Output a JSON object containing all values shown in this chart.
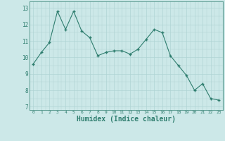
{
  "x": [
    0,
    1,
    2,
    3,
    4,
    5,
    6,
    7,
    8,
    9,
    10,
    11,
    12,
    13,
    14,
    15,
    16,
    17,
    18,
    19,
    20,
    21,
    22,
    23
  ],
  "y": [
    9.6,
    10.3,
    10.9,
    12.8,
    11.7,
    12.8,
    11.6,
    11.2,
    10.1,
    10.3,
    10.4,
    10.4,
    10.2,
    10.5,
    11.1,
    11.7,
    11.5,
    10.1,
    9.5,
    8.9,
    8.0,
    8.4,
    7.5,
    7.4
  ],
  "line_color": "#2e7d6e",
  "marker": "+",
  "marker_size": 3,
  "marker_linewidth": 1.0,
  "bg_color": "#cce8e8",
  "grid_color": "#b0d4d4",
  "xlabel": "Humidex (Indice chaleur)",
  "xlabel_fontsize": 7,
  "xtick_labels": [
    "0",
    "1",
    "2",
    "3",
    "4",
    "5",
    "6",
    "7",
    "8",
    "9",
    "10",
    "11",
    "12",
    "13",
    "14",
    "15",
    "16",
    "17",
    "18",
    "19",
    "20",
    "21",
    "22",
    "23"
  ],
  "ytick_values": [
    7,
    8,
    9,
    10,
    11,
    12,
    13
  ],
  "ylim": [
    6.8,
    13.4
  ],
  "xlim": [
    -0.5,
    23.5
  ]
}
